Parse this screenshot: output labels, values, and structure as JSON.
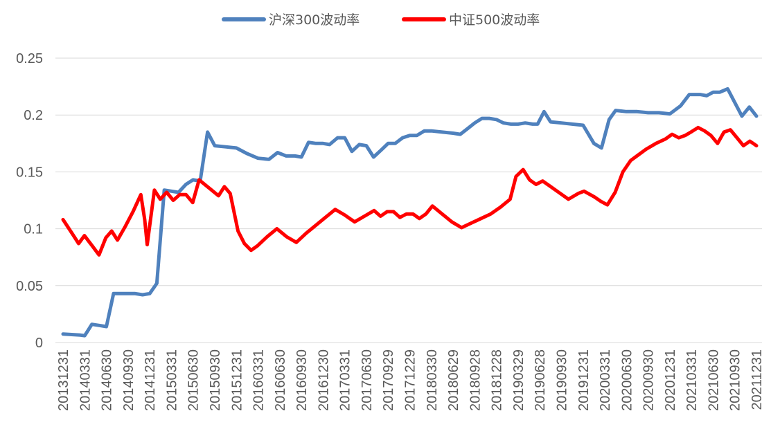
{
  "chart_data": {
    "type": "line",
    "title": "",
    "xlabel": "",
    "ylabel": "",
    "ylim": [
      0,
      0.25
    ],
    "yticks": [
      "0",
      "0.05",
      "0.1",
      "0.15",
      "0.2",
      "0.25"
    ],
    "grid": "horizontal",
    "legend_position": "top-center",
    "x_tick_labels": [
      "20131231",
      "20140331",
      "20140630",
      "20140930",
      "20141231",
      "20150331",
      "20150630",
      "20150930",
      "20151231",
      "20160331",
      "20160630",
      "20160930",
      "20161230",
      "20170331",
      "20170630",
      "20170929",
      "20171229",
      "20180330",
      "20180629",
      "20180928",
      "20181228",
      "20190329",
      "20190628",
      "20190930",
      "20191231",
      "20200331",
      "20200630",
      "20200930",
      "20201231",
      "20210331",
      "20210630",
      "20210930",
      "20211231"
    ],
    "series": [
      {
        "name": "沪深300波动率",
        "color": "#4F81BD",
        "points": [
          [
            0.0,
            0.0075
          ],
          [
            0.8,
            0.0065
          ],
          [
            1.0,
            0.006
          ],
          [
            1.33,
            0.016
          ],
          [
            1.67,
            0.015
          ],
          [
            2.0,
            0.014
          ],
          [
            2.33,
            0.043
          ],
          [
            2.67,
            0.043
          ],
          [
            3.0,
            0.043
          ],
          [
            3.33,
            0.043
          ],
          [
            3.67,
            0.042
          ],
          [
            4.0,
            0.043
          ],
          [
            4.33,
            0.052
          ],
          [
            4.67,
            0.134
          ],
          [
            5.0,
            0.133
          ],
          [
            5.33,
            0.132
          ],
          [
            5.67,
            0.139
          ],
          [
            6.0,
            0.143
          ],
          [
            6.33,
            0.142
          ],
          [
            6.67,
            0.185
          ],
          [
            7.0,
            0.173
          ],
          [
            7.5,
            0.172
          ],
          [
            8.0,
            0.171
          ],
          [
            8.5,
            0.166
          ],
          [
            9.0,
            0.162
          ],
          [
            9.5,
            0.161
          ],
          [
            9.9,
            0.167
          ],
          [
            10.3,
            0.164
          ],
          [
            10.7,
            0.164
          ],
          [
            11.0,
            0.163
          ],
          [
            11.33,
            0.176
          ],
          [
            11.67,
            0.175
          ],
          [
            12.0,
            0.175
          ],
          [
            12.3,
            0.174
          ],
          [
            12.67,
            0.18
          ],
          [
            13.0,
            0.18
          ],
          [
            13.33,
            0.168
          ],
          [
            13.67,
            0.174
          ],
          [
            14.0,
            0.173
          ],
          [
            14.33,
            0.163
          ],
          [
            14.67,
            0.169
          ],
          [
            15.0,
            0.175
          ],
          [
            15.33,
            0.175
          ],
          [
            15.67,
            0.18
          ],
          [
            16.0,
            0.182
          ],
          [
            16.33,
            0.182
          ],
          [
            16.67,
            0.186
          ],
          [
            17.0,
            0.186
          ],
          [
            17.5,
            0.185
          ],
          [
            18.0,
            0.184
          ],
          [
            18.33,
            0.183
          ],
          [
            18.67,
            0.188
          ],
          [
            19.0,
            0.193
          ],
          [
            19.33,
            0.197
          ],
          [
            19.67,
            0.197
          ],
          [
            20.0,
            0.196
          ],
          [
            20.33,
            0.193
          ],
          [
            20.67,
            0.192
          ],
          [
            21.0,
            0.192
          ],
          [
            21.33,
            0.193
          ],
          [
            21.67,
            0.192
          ],
          [
            21.9,
            0.192
          ],
          [
            22.2,
            0.203
          ],
          [
            22.5,
            0.194
          ],
          [
            23.0,
            0.193
          ],
          [
            23.5,
            0.192
          ],
          [
            24.0,
            0.191
          ],
          [
            24.5,
            0.175
          ],
          [
            24.85,
            0.171
          ],
          [
            25.2,
            0.196
          ],
          [
            25.5,
            0.204
          ],
          [
            26.0,
            0.203
          ],
          [
            26.5,
            0.203
          ],
          [
            27.0,
            0.202
          ],
          [
            27.5,
            0.202
          ],
          [
            28.0,
            0.201
          ],
          [
            28.5,
            0.208
          ],
          [
            28.9,
            0.218
          ],
          [
            29.4,
            0.218
          ],
          [
            29.7,
            0.217
          ],
          [
            30.0,
            0.22
          ],
          [
            30.3,
            0.22
          ],
          [
            30.67,
            0.223
          ],
          [
            31.0,
            0.211
          ],
          [
            31.33,
            0.199
          ],
          [
            31.67,
            0.207
          ],
          [
            32.0,
            0.199
          ]
        ]
      },
      {
        "name": "中证500波动率",
        "color": "#FF0000",
        "points": [
          [
            0.0,
            0.108
          ],
          [
            0.5,
            0.095
          ],
          [
            0.8,
            0.087
          ],
          [
            1.1,
            0.094
          ],
          [
            1.5,
            0.085
          ],
          [
            1.85,
            0.077
          ],
          [
            2.2,
            0.092
          ],
          [
            2.5,
            0.098
          ],
          [
            2.8,
            0.09
          ],
          [
            3.2,
            0.102
          ],
          [
            3.6,
            0.115
          ],
          [
            4.0,
            0.13
          ],
          [
            4.2,
            0.108
          ],
          [
            4.33,
            0.086
          ],
          [
            4.7,
            0.134
          ],
          [
            5.0,
            0.126
          ],
          [
            5.33,
            0.132
          ],
          [
            5.67,
            0.125
          ],
          [
            6.0,
            0.13
          ],
          [
            6.33,
            0.13
          ],
          [
            6.67,
            0.123
          ],
          [
            7.0,
            0.143
          ],
          [
            7.5,
            0.136
          ],
          [
            8.0,
            0.129
          ],
          [
            8.3,
            0.137
          ],
          [
            8.6,
            0.131
          ],
          [
            9.0,
            0.098
          ],
          [
            9.33,
            0.087
          ],
          [
            9.67,
            0.081
          ],
          [
            10.0,
            0.085
          ],
          [
            10.5,
            0.093
          ],
          [
            11.0,
            0.1
          ],
          [
            11.5,
            0.093
          ],
          [
            12.0,
            0.088
          ],
          [
            12.5,
            0.096
          ],
          [
            13.0,
            0.103
          ],
          [
            13.5,
            0.11
          ],
          [
            14.0,
            0.117
          ],
          [
            14.5,
            0.112
          ],
          [
            15.0,
            0.106
          ],
          [
            15.5,
            0.111
          ],
          [
            16.0,
            0.116
          ],
          [
            16.33,
            0.111
          ],
          [
            16.67,
            0.115
          ],
          [
            17.0,
            0.115
          ],
          [
            17.33,
            0.11
          ],
          [
            17.67,
            0.113
          ],
          [
            18.0,
            0.113
          ],
          [
            18.33,
            0.109
          ],
          [
            18.67,
            0.113
          ],
          [
            19.0,
            0.12
          ],
          [
            19.5,
            0.113
          ],
          [
            20.0,
            0.106
          ],
          [
            20.5,
            0.101
          ],
          [
            21.0,
            0.105
          ],
          [
            21.5,
            0.109
          ],
          [
            22.0,
            0.113
          ],
          [
            22.5,
            0.119
          ],
          [
            23.0,
            0.126
          ],
          [
            23.3,
            0.146
          ],
          [
            23.67,
            0.152
          ],
          [
            24.0,
            0.143
          ],
          [
            24.33,
            0.139
          ],
          [
            24.67,
            0.142
          ],
          [
            25.0,
            0.138
          ],
          [
            25.5,
            0.132
          ],
          [
            26.0,
            0.126
          ],
          [
            26.5,
            0.131
          ],
          [
            26.8,
            0.133
          ],
          [
            27.33,
            0.128
          ],
          [
            27.67,
            0.124
          ],
          [
            28.0,
            0.121
          ],
          [
            28.4,
            0.132
          ],
          [
            28.8,
            0.15
          ],
          [
            29.2,
            0.16
          ],
          [
            29.6,
            0.165
          ],
          [
            30.0,
            0.17
          ],
          [
            30.5,
            0.175
          ],
          [
            31.0,
            0.179
          ],
          [
            31.33,
            0.183
          ],
          [
            31.67,
            0.18
          ],
          [
            32.0,
            0.182
          ],
          [
            32.3,
            0.185
          ],
          [
            32.67,
            0.189
          ],
          [
            33.0,
            0.186
          ],
          [
            33.33,
            0.182
          ],
          [
            33.67,
            0.175
          ],
          [
            34.0,
            0.185
          ],
          [
            34.33,
            0.187
          ],
          [
            34.67,
            0.18
          ],
          [
            35.0,
            0.173
          ],
          [
            35.33,
            0.177
          ],
          [
            35.67,
            0.173
          ]
        ]
      }
    ]
  }
}
